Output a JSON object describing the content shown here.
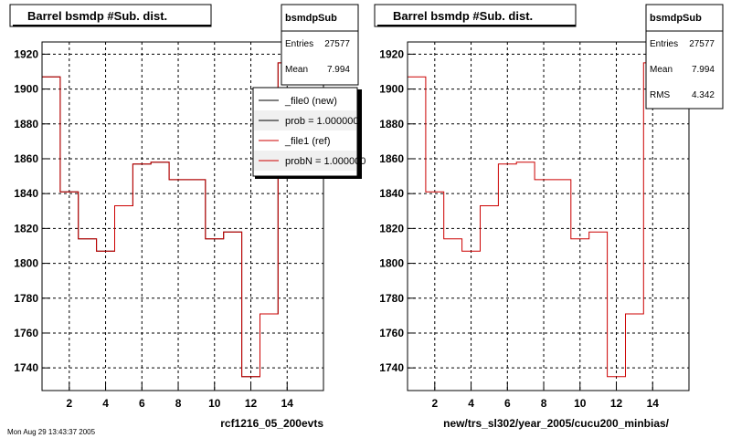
{
  "chart_data": [
    {
      "type": "histogram",
      "title": "Barrel bsmdp #Sub. dist.",
      "xlabel": "rcf1216_05_200evts",
      "ylabel": "",
      "xlim": [
        0.5,
        16
      ],
      "ylim": [
        1727,
        1927
      ],
      "xticks": [
        2,
        4,
        6,
        8,
        10,
        12,
        14
      ],
      "yticks": [
        1740,
        1760,
        1780,
        1800,
        1820,
        1840,
        1860,
        1880,
        1900,
        1920
      ],
      "grid": true,
      "bin_edges": [
        0.5,
        1.5,
        2.5,
        3.5,
        4.5,
        5.5,
        6.5,
        7.5,
        8.5,
        9.5,
        10.5,
        11.5,
        12.5,
        13.5,
        14.5,
        15.5
      ],
      "series": [
        {
          "name": "_file0 (new)",
          "color": "#000000",
          "values": [
            1907,
            1841,
            1814,
            1807,
            1833,
            1857,
            1858,
            1848,
            1848,
            1814,
            1818,
            1735,
            1771,
            1915,
            1912
          ]
        },
        {
          "name": "_file1 (ref)",
          "color": "#cc0000",
          "values": [
            1907,
            1841,
            1814,
            1807,
            1833,
            1857,
            1858,
            1848,
            1848,
            1814,
            1818,
            1735,
            1771,
            1915,
            1912
          ]
        }
      ],
      "stats": {
        "name": "bsmdpSub",
        "entries_label": "Entries",
        "entries": "27577",
        "mean_label": "Mean",
        "mean": "7.994"
      },
      "legend": {
        "placement": "top-right",
        "entries": [
          {
            "label": "_file0 (new)",
            "color": "#000000"
          },
          {
            "label": "prob = 1.000000",
            "color": "#000000"
          },
          {
            "label": "_file1 (ref)",
            "color": "#cc0000"
          },
          {
            "label": "probN = 1.000000",
            "color": "#cc0000"
          }
        ]
      }
    },
    {
      "type": "histogram",
      "title": "Barrel bsmdp #Sub. dist.",
      "xlabel": "new/trs_sl302/year_2005/cucu200_minbias/",
      "ylabel": "",
      "xlim": [
        0.5,
        16
      ],
      "ylim": [
        1727,
        1927
      ],
      "xticks": [
        2,
        4,
        6,
        8,
        10,
        12,
        14
      ],
      "yticks": [
        1740,
        1760,
        1780,
        1800,
        1820,
        1840,
        1860,
        1880,
        1900,
        1920
      ],
      "grid": true,
      "bin_edges": [
        0.5,
        1.5,
        2.5,
        3.5,
        4.5,
        5.5,
        6.5,
        7.5,
        8.5,
        9.5,
        10.5,
        11.5,
        12.5,
        13.5,
        14.5,
        15.5
      ],
      "series": [
        {
          "name": "bsmdpSub",
          "color": "#cc0000",
          "values": [
            1907,
            1841,
            1814,
            1807,
            1833,
            1857,
            1858,
            1848,
            1848,
            1814,
            1818,
            1735,
            1771,
            1915,
            1912
          ]
        }
      ],
      "stats": {
        "name": "bsmdpSub",
        "entries_label": "Entries",
        "entries": "27577",
        "mean_label": "Mean",
        "mean": "7.994",
        "rms_label": "RMS",
        "rms": "4.342"
      }
    }
  ],
  "footer": "Mon Aug 29 13:43:37 2005"
}
